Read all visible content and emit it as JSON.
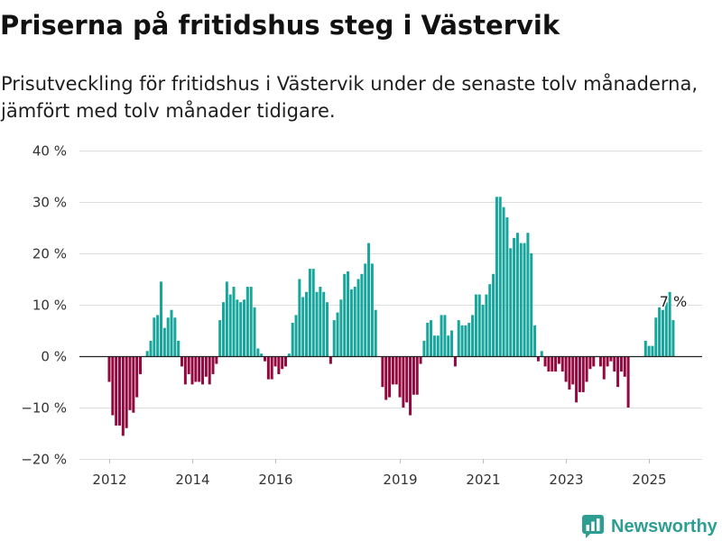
{
  "title": "Priserna på fritidshus steg i Västervik",
  "subtitle": "Prisutveckling för fritidshus i Västervik under de senaste tolv månaderna, jämfört med tolv månader tidigare.",
  "brand": {
    "name": "Newsworthy",
    "icon": "bar-chart-logo-icon",
    "color": "#2e9e92"
  },
  "chart_data": {
    "type": "bar",
    "ylim": [
      -20,
      40
    ],
    "grid": true,
    "colors": {
      "positive": "#17a59c",
      "negative": "#93083f"
    },
    "y_ticks": [
      {
        "value": 40,
        "label": "40 %"
      },
      {
        "value": 30,
        "label": "30 %"
      },
      {
        "value": 20,
        "label": "20 %"
      },
      {
        "value": 10,
        "label": "10 %"
      },
      {
        "value": 0,
        "label": "0 %"
      },
      {
        "value": -10,
        "label": "−10 %"
      },
      {
        "value": -20,
        "label": "−20 %"
      }
    ],
    "x_ticks": [
      {
        "value": "2012-01",
        "label": "2012"
      },
      {
        "value": "2014-01",
        "label": "2014"
      },
      {
        "value": "2016-01",
        "label": "2016"
      },
      {
        "value": "2019-01",
        "label": "2019"
      },
      {
        "value": "2021-01",
        "label": "2021"
      },
      {
        "value": "2023-01",
        "label": "2023"
      },
      {
        "value": "2025-01",
        "label": "2025"
      }
    ],
    "x": [
      "2012-01",
      "2012-02",
      "2012-03",
      "2012-04",
      "2012-05",
      "2012-06",
      "2012-07",
      "2012-08",
      "2012-09",
      "2012-10",
      "2012-11",
      "2012-12",
      "2013-01",
      "2013-02",
      "2013-03",
      "2013-04",
      "2013-05",
      "2013-06",
      "2013-07",
      "2013-08",
      "2013-09",
      "2013-10",
      "2013-11",
      "2013-12",
      "2014-01",
      "2014-02",
      "2014-03",
      "2014-04",
      "2014-05",
      "2014-06",
      "2014-07",
      "2014-08",
      "2014-09",
      "2014-10",
      "2014-11",
      "2014-12",
      "2015-01",
      "2015-02",
      "2015-03",
      "2015-04",
      "2015-05",
      "2015-06",
      "2015-07",
      "2015-08",
      "2015-09",
      "2015-10",
      "2015-11",
      "2015-12",
      "2016-01",
      "2016-02",
      "2016-03",
      "2016-04",
      "2016-05",
      "2016-06",
      "2016-07",
      "2016-08",
      "2016-09",
      "2016-10",
      "2016-11",
      "2016-12",
      "2017-01",
      "2017-02",
      "2017-03",
      "2017-04",
      "2017-05",
      "2017-06",
      "2017-07",
      "2017-08",
      "2017-09",
      "2017-10",
      "2017-11",
      "2017-12",
      "2018-01",
      "2018-02",
      "2018-03",
      "2018-04",
      "2018-05",
      "2018-06",
      "2018-07",
      "2018-08",
      "2018-09",
      "2018-10",
      "2018-11",
      "2018-12",
      "2019-01",
      "2019-02",
      "2019-03",
      "2019-04",
      "2019-05",
      "2019-06",
      "2019-07",
      "2019-08",
      "2019-09",
      "2019-10",
      "2019-11",
      "2019-12",
      "2020-01",
      "2020-02",
      "2020-03",
      "2020-04",
      "2020-05",
      "2020-06",
      "2020-07",
      "2020-08",
      "2020-09",
      "2020-10",
      "2020-11",
      "2020-12",
      "2021-01",
      "2021-02",
      "2021-03",
      "2021-04",
      "2021-05",
      "2021-06",
      "2021-07",
      "2021-08",
      "2021-09",
      "2021-10",
      "2021-11",
      "2021-12",
      "2022-01",
      "2022-02",
      "2022-03",
      "2022-04",
      "2022-05",
      "2022-06",
      "2022-07",
      "2022-08",
      "2022-09",
      "2022-10",
      "2022-11",
      "2022-12",
      "2023-01",
      "2023-02",
      "2023-03",
      "2023-04",
      "2023-05",
      "2023-06",
      "2023-07",
      "2023-08",
      "2023-09",
      "2023-10",
      "2023-11",
      "2023-12",
      "2024-01",
      "2024-02",
      "2024-03",
      "2024-04",
      "2024-05",
      "2024-06",
      "2024-07",
      "2024-08",
      "2024-09",
      "2024-10",
      "2024-11",
      "2024-12",
      "2025-01",
      "2025-02",
      "2025-03",
      "2025-04",
      "2025-05",
      "2025-06",
      "2025-07",
      "2025-08"
    ],
    "values": [
      -5,
      -11.5,
      -13.5,
      -13.5,
      -15.5,
      -14,
      -10.5,
      -11,
      -8,
      -3.5,
      null,
      1,
      3,
      7.5,
      8,
      14.5,
      5.5,
      7.5,
      9,
      7.5,
      3,
      -2,
      -5.5,
      -3.5,
      -5.5,
      -5,
      -5,
      -5.5,
      -4,
      -5.5,
      -3.5,
      -1.5,
      7,
      10.5,
      14.5,
      12,
      13.5,
      11,
      10.5,
      11,
      13.5,
      13.5,
      9.5,
      1.5,
      0.5,
      -1,
      -4.5,
      -4.5,
      -2,
      -3.5,
      -2.5,
      -2,
      0.5,
      6.5,
      8,
      15,
      11.5,
      12.5,
      17,
      17,
      12.5,
      13.5,
      12.5,
      10.5,
      -1.5,
      7,
      8.5,
      11,
      16,
      16.5,
      13,
      13.5,
      15,
      16,
      18,
      22,
      18,
      9,
      null,
      -6,
      -8.5,
      -8,
      -5.5,
      -5.5,
      -8,
      -10,
      -9,
      -11.5,
      -7.5,
      -7.5,
      -1.5,
      3,
      6.5,
      7,
      4,
      4,
      8,
      8,
      4,
      5,
      -2,
      7,
      6,
      6,
      6.5,
      8,
      12,
      12,
      10,
      12,
      14,
      16,
      31,
      31,
      29,
      27,
      21,
      23,
      24,
      22,
      22,
      24,
      20,
      6,
      -1,
      1,
      -2,
      -3,
      -3,
      -3,
      -1.5,
      -3,
      -5,
      -6.5,
      -5.5,
      -9,
      -7,
      -7,
      -5,
      -2.5,
      -2,
      0,
      -2,
      -4.5,
      -2,
      -1,
      -3,
      -6,
      -3,
      -4,
      -10,
      null,
      null,
      null,
      null,
      3,
      2,
      2,
      7.5,
      9.5,
      9,
      10.5,
      12.5,
      7
    ],
    "data_labels": [
      {
        "x": "2025-08",
        "label": "7 %"
      }
    ]
  }
}
